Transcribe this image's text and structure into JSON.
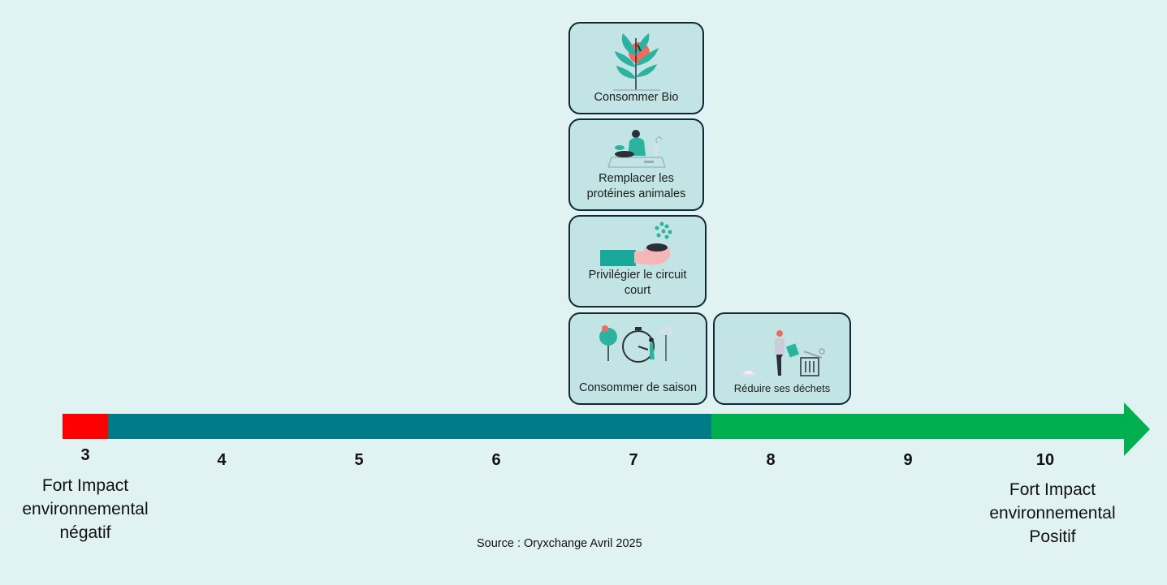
{
  "cards": {
    "bio": "Consommer Bio",
    "proteines": "Remplacer les protéines animales",
    "circuit": "Privilégier le circuit court",
    "saison": "Consommer de saison",
    "dechets": "Réduire ses déchets"
  },
  "scale": {
    "ticks": [
      "3",
      "4",
      "5",
      "6",
      "7",
      "8",
      "9",
      "10"
    ]
  },
  "labels": {
    "left": "Fort Impact environnemental négatif",
    "right": "Fort Impact environnemental Positif"
  },
  "source": "Source : Oryxchange Avril 2025",
  "colors": {
    "negative": "#ff0000",
    "neutral": "#007c89",
    "positive": "#00b050",
    "card_fill": "#c3e4e5",
    "card_border": "#0f2a35",
    "background": "#e1f2f3"
  },
  "icons": {
    "bio": "plant-icon",
    "proteines": "person-cooking-icon",
    "circuit": "hand-basket-icon",
    "saison": "season-clock-icon",
    "dechets": "trash-person-icon"
  }
}
